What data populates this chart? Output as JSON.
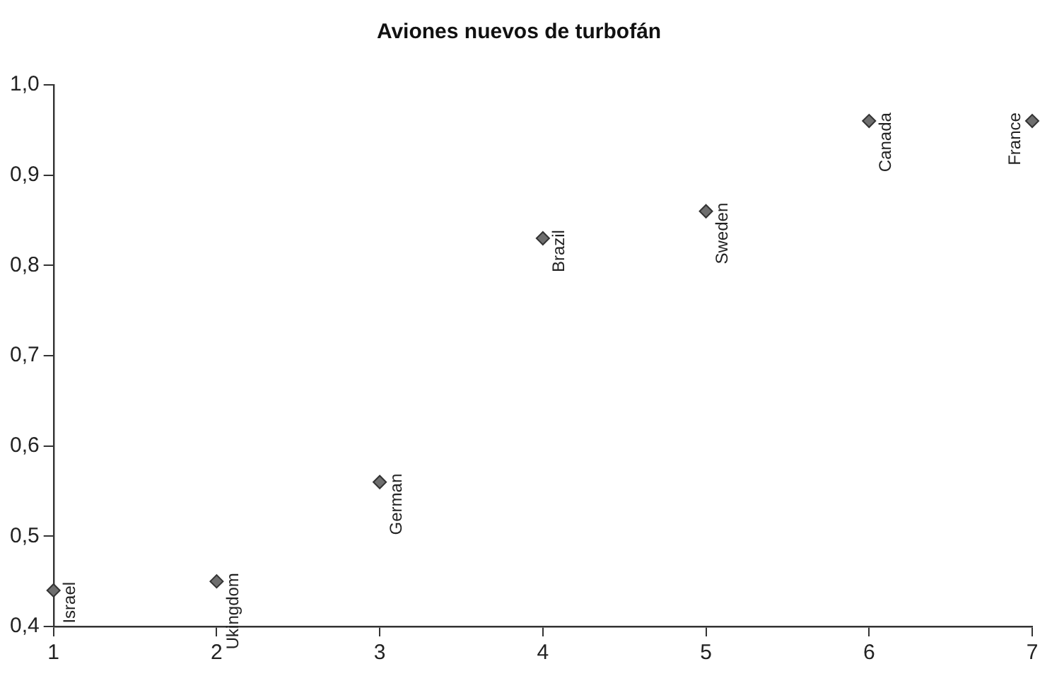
{
  "chart_data": {
    "type": "scatter",
    "title": "Aviones nuevos de turbofán",
    "x": [
      1,
      2,
      3,
      4,
      5,
      6,
      7
    ],
    "series": [
      {
        "color": "#6e6e6e",
        "values": [
          0.44,
          0.45,
          0.56,
          0.83,
          0.86,
          0.96,
          0.96
        ]
      }
    ],
    "marker": "diamond",
    "xlim": [
      1,
      7
    ],
    "xticks": [
      1,
      2,
      3,
      4,
      5,
      6,
      7
    ],
    "ylim": [
      0.4,
      1.0
    ],
    "yticks": [
      {
        "value": 0.4,
        "label": "0,4"
      },
      {
        "value": 0.5,
        "label": "0,5"
      },
      {
        "value": 0.6,
        "label": "0,6"
      },
      {
        "value": 0.7,
        "label": "0,7"
      },
      {
        "value": 0.8,
        "label": "0,8"
      },
      {
        "value": 0.9,
        "label": "0,9"
      },
      {
        "value": 1.0,
        "label": "1,0"
      }
    ],
    "annotations": [
      {
        "text": "Israel",
        "x": 1,
        "y": 0.44
      },
      {
        "text": "Ukingdom",
        "x": 2,
        "y": 0.45
      },
      {
        "text": "German",
        "x": 3,
        "y": 0.56
      },
      {
        "text": "Brazil",
        "x": 4,
        "y": 0.83
      },
      {
        "text": "Sweden",
        "x": 5,
        "y": 0.86
      },
      {
        "text": "Canada",
        "x": 6,
        "y": 0.96
      },
      {
        "text": "France",
        "x": 7,
        "y": 0.96
      }
    ]
  }
}
